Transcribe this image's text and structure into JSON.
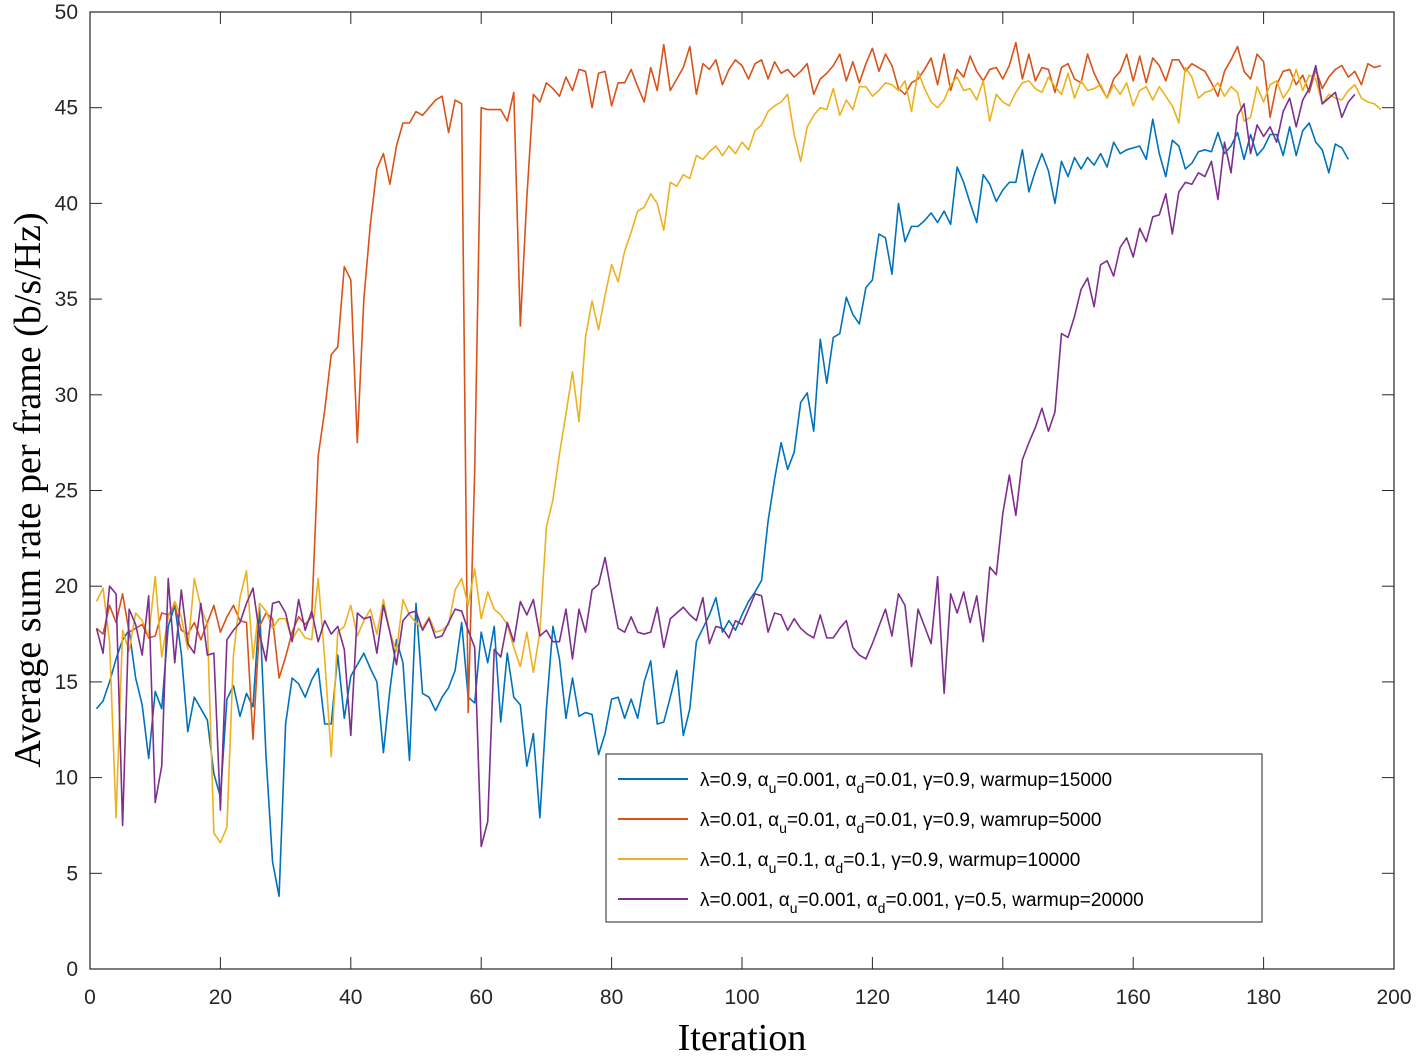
{
  "chart_data": {
    "type": "line",
    "xlabel": "Iteration",
    "ylabel": "Average sum rate per frame (b/s/Hz)",
    "xlim": [
      0,
      200
    ],
    "ylim": [
      0,
      50
    ],
    "xticks": [
      "0",
      "20",
      "40",
      "60",
      "80",
      "100",
      "120",
      "140",
      "160",
      "180",
      "200"
    ],
    "yticks": [
      "0",
      "5",
      "10",
      "15",
      "20",
      "25",
      "30",
      "35",
      "40",
      "45",
      "50"
    ],
    "grid": false,
    "legend_position": "lower-right",
    "x_start": 1,
    "series": [
      {
        "color": "#0072BD",
        "legend": {
          "lam": "0.9",
          "au": "0.001",
          "ad": "0.01",
          "g": "0.9",
          "wkey": "warmup",
          "wval": "15000"
        },
        "values": [
          13.6,
          14.0,
          15.0,
          16.2,
          17.2,
          17.7,
          15.2,
          13.8,
          11.0,
          14.5,
          13.6,
          17.9,
          19.0,
          16.5,
          12.4,
          14.2,
          13.6,
          13.0,
          10.2,
          9.0,
          14.1,
          14.8,
          13.2,
          14.4,
          13.7,
          18.9,
          11.1,
          5.6,
          3.8,
          12.8,
          15.2,
          14.9,
          14.2,
          15.1,
          15.7,
          12.8,
          12.8,
          16.4,
          13.1,
          15.3,
          15.9,
          16.5,
          15.7,
          15.0,
          11.3,
          14.6,
          17.2,
          16.0,
          10.9,
          19.1,
          14.4,
          14.2,
          13.5,
          14.2,
          14.7,
          15.6,
          18.1,
          14.2,
          13.9,
          17.6,
          16.0,
          17.9,
          12.9,
          16.5,
          14.2,
          13.8,
          10.6,
          12.3,
          7.9,
          13.6,
          17.9,
          16.2,
          13.1,
          15.2,
          13.2,
          13.4,
          13.3,
          11.2,
          12.3,
          14.1,
          14.2,
          13.1,
          14.1,
          13.1,
          15.0,
          16.1,
          12.8,
          12.9,
          14.2,
          15.6,
          12.2,
          13.6,
          17.1,
          17.8,
          18.5,
          19.4,
          17.6,
          18.2,
          17.7,
          18.5,
          19.2,
          19.7,
          20.3,
          23.4,
          25.6,
          27.5,
          26.1,
          27.0,
          29.6,
          30.1,
          28.1,
          32.9,
          30.6,
          33.0,
          33.2,
          35.1,
          34.2,
          33.7,
          35.6,
          36.0,
          38.4,
          38.2,
          36.3,
          40.0,
          38.0,
          38.8,
          38.8,
          39.1,
          39.5,
          39.0,
          39.6,
          38.9,
          41.9,
          41.1,
          40.0,
          39.0,
          41.5,
          41.0,
          40.1,
          40.7,
          41.1,
          41.1,
          42.8,
          40.6,
          41.7,
          42.6,
          41.7,
          40.0,
          42.2,
          41.4,
          42.4,
          41.8,
          42.4,
          42.0,
          42.6,
          41.9,
          43.2,
          42.6,
          42.8,
          42.9,
          43.0,
          42.3,
          44.4,
          42.6,
          41.4,
          43.3,
          43.0,
          41.8,
          42.1,
          42.7,
          42.8,
          42.7,
          43.7,
          42.6,
          43.0,
          43.7,
          42.3,
          43.6,
          42.5,
          42.9,
          43.6,
          43.6,
          42.5,
          44.0,
          42.5,
          43.8,
          44.2,
          43.2,
          42.8,
          41.6,
          43.1,
          42.9,
          42.3
        ]
      },
      {
        "color": "#D95319",
        "legend": {
          "lam": "0.01",
          "au": "0.01",
          "ad": "0.01",
          "g": "0.9",
          "wkey": "wamrup",
          "wval": "5000"
        },
        "values": [
          17.8,
          17.5,
          19.0,
          18.1,
          19.6,
          17.6,
          17.8,
          18.0,
          17.3,
          17.4,
          18.6,
          18.5,
          19.0,
          17.7,
          17.5,
          18.1,
          17.2,
          18.1,
          19.0,
          17.6,
          18.4,
          19.0,
          18.2,
          18.1,
          12.0,
          17.9,
          18.6,
          18.3,
          15.2,
          16.3,
          17.6,
          18.4,
          18.0,
          18.4,
          26.8,
          29.2,
          32.1,
          32.5,
          36.7,
          36.0,
          27.5,
          35.0,
          38.9,
          41.8,
          42.6,
          41.0,
          43.0,
          44.2,
          44.2,
          44.8,
          44.6,
          45.0,
          45.4,
          45.6,
          43.7,
          45.4,
          45.2,
          13.4,
          26.0,
          45.0,
          44.9,
          44.9,
          44.9,
          44.3,
          45.8,
          33.6,
          40.3,
          45.7,
          45.3,
          46.3,
          46.0,
          45.6,
          46.6,
          45.9,
          47.0,
          46.9,
          45.0,
          46.8,
          46.9,
          45.1,
          46.3,
          46.3,
          47.0,
          46.1,
          45.3,
          47.1,
          45.9,
          48.3,
          45.9,
          46.5,
          47.1,
          48.2,
          45.7,
          47.3,
          47.0,
          47.5,
          46.2,
          47.0,
          47.5,
          47.2,
          46.5,
          47.3,
          47.5,
          46.5,
          47.4,
          46.8,
          47.0,
          46.6,
          46.9,
          47.3,
          45.7,
          46.5,
          46.8,
          47.2,
          47.8,
          46.4,
          47.4,
          46.3,
          47.3,
          48.1,
          46.9,
          47.8,
          47.2,
          46.0,
          45.7,
          46.3,
          46.5,
          47.0,
          47.6,
          46.2,
          47.8,
          45.9,
          47.0,
          46.6,
          47.7,
          46.9,
          46.4,
          47.0,
          47.1,
          46.5,
          47.2,
          48.4,
          46.5,
          47.8,
          46.4,
          47.1,
          47.0,
          45.8,
          47.1,
          47.3,
          46.5,
          46.3,
          47.8,
          46.8,
          46.1,
          45.5,
          46.5,
          46.9,
          47.8,
          46.4,
          47.7,
          46.3,
          47.6,
          47.2,
          46.4,
          47.5,
          47.5,
          46.9,
          47.3,
          47.1,
          46.9,
          46.3,
          45.6,
          46.9,
          47.5,
          48.2,
          46.9,
          46.5,
          47.8,
          47.4,
          44.5,
          46.2,
          46.9,
          47.0,
          46.2,
          46.7,
          45.8,
          47.0,
          46.0,
          46.6,
          47.0,
          47.2,
          46.6,
          46.9,
          46.2,
          47.3,
          47.1,
          47.2
        ]
      },
      {
        "color": "#EDB120",
        "legend": {
          "lam": "0.1",
          "au": "0.1",
          "ad": "0.1",
          "g": "0.9",
          "wkey": "warmup",
          "wval": "10000"
        },
        "values": [
          19.2,
          19.9,
          17.1,
          7.9,
          17.7,
          16.6,
          18.6,
          18.2,
          17.4,
          20.5,
          16.3,
          18.4,
          19.2,
          18.4,
          16.7,
          20.4,
          18.9,
          18.0,
          7.1,
          6.6,
          7.4,
          16.4,
          19.4,
          20.8,
          16.2,
          19.1,
          18.7,
          17.8,
          18.3,
          18.3,
          17.2,
          17.8,
          17.3,
          17.2,
          20.4,
          16.2,
          11.1,
          17.6,
          17.9,
          19.0,
          17.4,
          18.2,
          18.8,
          17.5,
          19.3,
          17.6,
          16.6,
          19.3,
          18.5,
          18.1,
          17.8,
          18.4,
          17.6,
          17.7,
          18.0,
          19.8,
          20.4,
          19.0,
          20.9,
          18.3,
          19.7,
          18.8,
          18.5,
          18.0,
          16.8,
          15.8,
          17.6,
          15.5,
          17.6,
          23.1,
          24.5,
          26.9,
          29.0,
          31.2,
          28.6,
          33.0,
          34.9,
          33.4,
          35.2,
          36.8,
          35.9,
          37.5,
          38.5,
          39.6,
          39.8,
          40.5,
          40.0,
          38.6,
          41.1,
          40.9,
          41.5,
          41.3,
          42.5,
          42.3,
          42.7,
          43.0,
          42.5,
          43.0,
          42.6,
          43.2,
          42.8,
          43.8,
          44.1,
          44.8,
          45.1,
          45.3,
          45.7,
          43.6,
          42.2,
          44.0,
          44.6,
          45.0,
          44.9,
          46.0,
          44.6,
          45.4,
          44.9,
          46.1,
          46.1,
          45.6,
          45.9,
          46.3,
          46.2,
          45.9,
          46.4,
          44.8,
          46.9,
          46.0,
          45.3,
          45.0,
          45.4,
          46.2,
          46.6,
          45.9,
          46.0,
          45.4,
          46.4,
          44.3,
          45.7,
          45.3,
          45.1,
          45.8,
          46.3,
          46.4,
          46.0,
          45.8,
          46.6,
          46.1,
          45.7,
          46.8,
          45.5,
          46.4,
          45.9,
          46.0,
          46.2,
          45.5,
          46.2,
          45.7,
          46.3,
          45.1,
          45.9,
          46.1,
          45.4,
          46.1,
          45.6,
          45.1,
          44.2,
          47.1,
          46.6,
          45.5,
          45.8,
          45.9,
          46.3,
          45.6,
          46.1,
          45.8,
          44.3,
          44.5,
          46.1,
          45.3,
          46.2,
          46.4,
          45.5,
          46.0,
          47.0,
          45.9,
          46.7,
          46.5,
          45.2,
          45.7,
          45.5,
          45.4,
          45.9,
          46.2,
          45.5,
          45.3,
          45.2,
          44.9
        ]
      },
      {
        "color": "#7E2F8E",
        "legend": {
          "lam": "0.001",
          "au": "0.001",
          "ad": "0.001",
          "g": "0.5",
          "wkey": "warmup",
          "wval": "20000"
        },
        "values": [
          17.8,
          16.5,
          20.0,
          19.6,
          7.5,
          18.8,
          18.0,
          16.4,
          19.5,
          8.7,
          10.6,
          20.4,
          16.0,
          19.8,
          17.0,
          16.5,
          19.1,
          16.4,
          16.5,
          8.3,
          17.2,
          17.7,
          18.1,
          19.1,
          19.9,
          17.5,
          16.1,
          19.1,
          19.2,
          18.6,
          17.1,
          19.3,
          17.7,
          18.7,
          17.1,
          18.2,
          17.5,
          17.9,
          16.7,
          12.2,
          18.6,
          18.3,
          18.4,
          16.5,
          19.0,
          17.6,
          15.9,
          18.2,
          18.6,
          18.7,
          17.7,
          18.3,
          17.3,
          17.4,
          18.1,
          18.8,
          18.7,
          17.7,
          16.8,
          6.4,
          7.7,
          16.7,
          16.3,
          18.1,
          17.1,
          19.2,
          18.5,
          19.3,
          17.4,
          17.7,
          17.1,
          17.1,
          18.8,
          16.2,
          18.8,
          17.6,
          19.8,
          20.1,
          21.5,
          19.6,
          17.8,
          17.6,
          18.4,
          17.6,
          17.5,
          17.6,
          18.9,
          16.8,
          18.3,
          18.6,
          18.9,
          18.5,
          18.2,
          19.4,
          17.0,
          17.9,
          17.8,
          17.3,
          18.2,
          18.0,
          18.8,
          19.6,
          19.5,
          17.6,
          18.6,
          18.5,
          17.7,
          18.3,
          17.8,
          17.5,
          17.3,
          18.5,
          17.3,
          17.3,
          17.8,
          18.2,
          16.8,
          16.4,
          16.2,
          17.0,
          17.9,
          18.8,
          17.4,
          19.6,
          19.0,
          15.8,
          18.8,
          17.9,
          17.0,
          20.5,
          14.4,
          19.6,
          18.6,
          19.7,
          18.1,
          19.5,
          17.1,
          21.0,
          20.6,
          23.8,
          25.8,
          23.7,
          26.6,
          27.5,
          28.3,
          29.3,
          28.1,
          29.1,
          33.2,
          33.0,
          34.1,
          35.5,
          36.1,
          34.6,
          36.8,
          37.0,
          36.2,
          37.7,
          38.2,
          37.2,
          38.7,
          38.0,
          39.3,
          39.4,
          40.5,
          38.4,
          40.6,
          41.1,
          41.0,
          41.6,
          41.4,
          42.2,
          40.2,
          43.2,
          41.6,
          44.6,
          45.2,
          42.6,
          44.1,
          43.5,
          44.0,
          43.2,
          44.8,
          45.5,
          44.0,
          45.4,
          46.0,
          47.2,
          45.2,
          45.5,
          45.8,
          44.5,
          45.3,
          45.7
        ]
      }
    ]
  }
}
